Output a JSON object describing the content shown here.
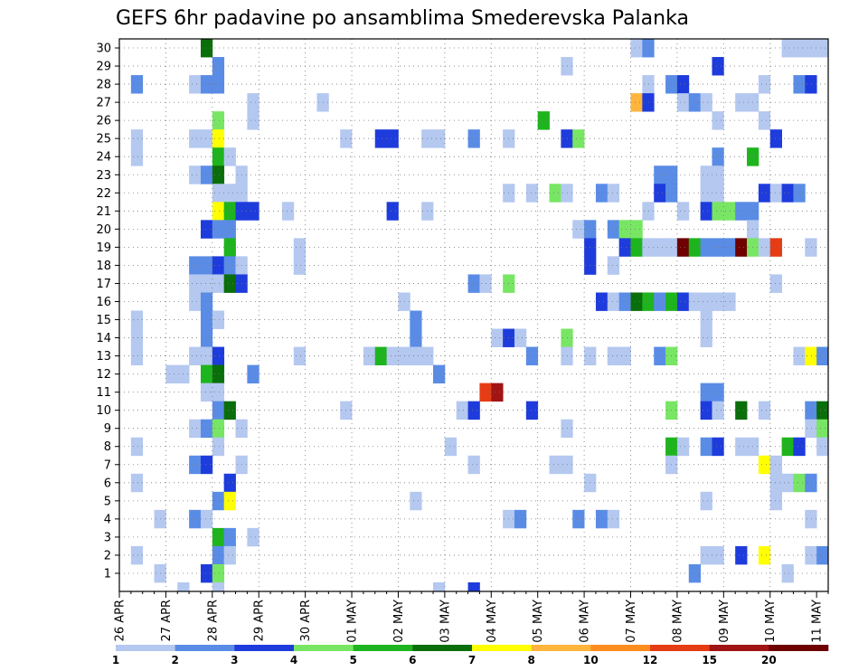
{
  "chart_data": {
    "type": "heatmap",
    "title": "GEFS 6hr padavine po ansamblima Smederevska Palanka",
    "x_labels": [
      "26 APR",
      "27 APR",
      "28 APR",
      "29 APR",
      "30 APR",
      "01 MAY",
      "02 MAY",
      "03 MAY",
      "04 MAY",
      "05 MAY",
      "06 MAY",
      "07 MAY",
      "08 MAY",
      "09 MAY",
      "10 MAY",
      "11 MAY"
    ],
    "y_labels": [
      "1",
      "2",
      "3",
      "4",
      "5",
      "6",
      "7",
      "8",
      "9",
      "10",
      "11",
      "12",
      "13",
      "14",
      "15",
      "16",
      "17",
      "18",
      "19",
      "20",
      "21",
      "22",
      "23",
      "24",
      "25",
      "26",
      "27",
      "28",
      "29",
      "30"
    ],
    "n_steps": 61,
    "xlim_steps": [
      0,
      61
    ],
    "ylim_members": [
      0.5,
      30.5
    ],
    "colorbar": {
      "labels": [
        "1",
        "2",
        "3",
        "4",
        "5",
        "6",
        "7",
        "8",
        "10",
        "12",
        "15",
        "20"
      ],
      "colors": [
        "#b4c8f0",
        "#5a8ce6",
        "#1e3cdc",
        "#78e664",
        "#1eb41e",
        "#0a6e0a",
        "#ffff00",
        "#ffb43c",
        "#ff8c1e",
        "#e63c14",
        "#a01414",
        "#6e0000"
      ]
    },
    "cells_note": "each cell = [member, step_index, color_index]",
    "cells": [
      [
        30,
        7,
        5
      ],
      [
        30,
        44,
        0
      ],
      [
        30,
        45,
        1
      ],
      [
        30,
        57,
        0
      ],
      [
        30,
        58,
        0
      ],
      [
        30,
        59,
        0
      ],
      [
        30,
        60,
        0
      ],
      [
        29,
        8,
        1
      ],
      [
        29,
        38,
        0
      ],
      [
        29,
        51,
        2
      ],
      [
        28,
        1,
        1
      ],
      [
        28,
        6,
        0
      ],
      [
        28,
        7,
        1
      ],
      [
        28,
        8,
        1
      ],
      [
        28,
        45,
        0
      ],
      [
        28,
        47,
        1
      ],
      [
        28,
        48,
        2
      ],
      [
        28,
        55,
        0
      ],
      [
        28,
        58,
        1
      ],
      [
        28,
        59,
        2
      ],
      [
        27,
        11,
        0
      ],
      [
        27,
        17,
        0
      ],
      [
        27,
        44,
        7
      ],
      [
        27,
        45,
        2
      ],
      [
        27,
        48,
        0
      ],
      [
        27,
        49,
        1
      ],
      [
        27,
        50,
        0
      ],
      [
        27,
        53,
        0
      ],
      [
        27,
        54,
        0
      ],
      [
        26,
        8,
        3
      ],
      [
        26,
        11,
        0
      ],
      [
        26,
        36,
        4
      ],
      [
        26,
        51,
        0
      ],
      [
        26,
        55,
        0
      ],
      [
        25,
        1,
        0
      ],
      [
        25,
        6,
        0
      ],
      [
        25,
        7,
        0
      ],
      [
        25,
        8,
        6
      ],
      [
        25,
        19,
        0
      ],
      [
        25,
        22,
        2
      ],
      [
        25,
        23,
        2
      ],
      [
        25,
        26,
        0
      ],
      [
        25,
        27,
        0
      ],
      [
        25,
        30,
        1
      ],
      [
        25,
        33,
        0
      ],
      [
        25,
        38,
        2
      ],
      [
        25,
        39,
        3
      ],
      [
        25,
        56,
        2
      ],
      [
        24,
        1,
        0
      ],
      [
        24,
        8,
        4
      ],
      [
        24,
        9,
        0
      ],
      [
        24,
        51,
        1
      ],
      [
        24,
        54,
        4
      ],
      [
        23,
        6,
        0
      ],
      [
        23,
        7,
        1
      ],
      [
        23,
        8,
        5
      ],
      [
        23,
        10,
        0
      ],
      [
        23,
        46,
        1
      ],
      [
        23,
        47,
        1
      ],
      [
        23,
        50,
        0
      ],
      [
        23,
        51,
        0
      ],
      [
        22,
        8,
        0
      ],
      [
        22,
        9,
        0
      ],
      [
        22,
        10,
        0
      ],
      [
        22,
        33,
        0
      ],
      [
        22,
        35,
        0
      ],
      [
        22,
        37,
        3
      ],
      [
        22,
        38,
        0
      ],
      [
        22,
        41,
        1
      ],
      [
        22,
        42,
        0
      ],
      [
        22,
        46,
        2
      ],
      [
        22,
        47,
        1
      ],
      [
        22,
        50,
        0
      ],
      [
        22,
        51,
        0
      ],
      [
        22,
        55,
        2
      ],
      [
        22,
        56,
        0
      ],
      [
        22,
        57,
        2
      ],
      [
        22,
        58,
        1
      ],
      [
        21,
        8,
        6
      ],
      [
        21,
        9,
        4
      ],
      [
        21,
        10,
        2
      ],
      [
        21,
        11,
        2
      ],
      [
        21,
        14,
        0
      ],
      [
        21,
        23,
        2
      ],
      [
        21,
        26,
        0
      ],
      [
        21,
        45,
        0
      ],
      [
        21,
        48,
        0
      ],
      [
        21,
        50,
        2
      ],
      [
        21,
        51,
        3
      ],
      [
        21,
        52,
        3
      ],
      [
        21,
        53,
        1
      ],
      [
        21,
        54,
        1
      ],
      [
        20,
        7,
        2
      ],
      [
        20,
        8,
        1
      ],
      [
        20,
        9,
        1
      ],
      [
        20,
        39,
        0
      ],
      [
        20,
        40,
        1
      ],
      [
        20,
        42,
        1
      ],
      [
        20,
        43,
        3
      ],
      [
        20,
        44,
        3
      ],
      [
        20,
        54,
        0
      ],
      [
        19,
        9,
        4
      ],
      [
        19,
        15,
        0
      ],
      [
        19,
        40,
        2
      ],
      [
        19,
        43,
        2
      ],
      [
        19,
        44,
        4
      ],
      [
        19,
        45,
        0
      ],
      [
        19,
        46,
        0
      ],
      [
        19,
        47,
        0
      ],
      [
        19,
        48,
        11
      ],
      [
        19,
        49,
        4
      ],
      [
        19,
        50,
        1
      ],
      [
        19,
        51,
        1
      ],
      [
        19,
        52,
        1
      ],
      [
        19,
        53,
        11
      ],
      [
        19,
        54,
        3
      ],
      [
        19,
        55,
        0
      ],
      [
        19,
        56,
        9
      ],
      [
        19,
        59,
        0
      ],
      [
        18,
        6,
        1
      ],
      [
        18,
        7,
        1
      ],
      [
        18,
        8,
        2
      ],
      [
        18,
        9,
        1
      ],
      [
        18,
        10,
        0
      ],
      [
        18,
        15,
        0
      ],
      [
        18,
        40,
        2
      ],
      [
        18,
        42,
        0
      ],
      [
        17,
        6,
        0
      ],
      [
        17,
        7,
        0
      ],
      [
        17,
        8,
        0
      ],
      [
        17,
        9,
        5
      ],
      [
        17,
        10,
        2
      ],
      [
        17,
        30,
        1
      ],
      [
        17,
        31,
        0
      ],
      [
        17,
        33,
        3
      ],
      [
        17,
        56,
        0
      ],
      [
        16,
        6,
        0
      ],
      [
        16,
        7,
        1
      ],
      [
        16,
        24,
        0
      ],
      [
        16,
        41,
        2
      ],
      [
        16,
        42,
        0
      ],
      [
        16,
        43,
        1
      ],
      [
        16,
        44,
        5
      ],
      [
        16,
        45,
        4
      ],
      [
        16,
        46,
        1
      ],
      [
        16,
        47,
        4
      ],
      [
        16,
        48,
        2
      ],
      [
        16,
        49,
        0
      ],
      [
        16,
        50,
        0
      ],
      [
        16,
        51,
        0
      ],
      [
        16,
        52,
        0
      ],
      [
        15,
        1,
        0
      ],
      [
        15,
        7,
        1
      ],
      [
        15,
        8,
        0
      ],
      [
        15,
        25,
        1
      ],
      [
        15,
        50,
        0
      ],
      [
        14,
        1,
        0
      ],
      [
        14,
        7,
        1
      ],
      [
        14,
        25,
        1
      ],
      [
        14,
        32,
        0
      ],
      [
        14,
        33,
        2
      ],
      [
        14,
        34,
        0
      ],
      [
        14,
        38,
        3
      ],
      [
        14,
        50,
        0
      ],
      [
        13,
        1,
        0
      ],
      [
        13,
        6,
        0
      ],
      [
        13,
        7,
        0
      ],
      [
        13,
        8,
        2
      ],
      [
        13,
        15,
        0
      ],
      [
        13,
        21,
        0
      ],
      [
        13,
        22,
        4
      ],
      [
        13,
        23,
        0
      ],
      [
        13,
        24,
        0
      ],
      [
        13,
        25,
        0
      ],
      [
        13,
        26,
        0
      ],
      [
        13,
        35,
        1
      ],
      [
        13,
        38,
        0
      ],
      [
        13,
        40,
        0
      ],
      [
        13,
        42,
        0
      ],
      [
        13,
        43,
        0
      ],
      [
        13,
        46,
        1
      ],
      [
        13,
        47,
        3
      ],
      [
        13,
        58,
        0
      ],
      [
        13,
        59,
        6
      ],
      [
        13,
        60,
        1
      ],
      [
        12,
        4,
        0
      ],
      [
        12,
        5,
        0
      ],
      [
        12,
        7,
        4
      ],
      [
        12,
        8,
        5
      ],
      [
        12,
        11,
        1
      ],
      [
        12,
        27,
        1
      ],
      [
        11,
        7,
        0
      ],
      [
        11,
        8,
        0
      ],
      [
        11,
        31,
        9
      ],
      [
        11,
        32,
        10
      ],
      [
        11,
        50,
        1
      ],
      [
        11,
        51,
        1
      ],
      [
        10,
        8,
        1
      ],
      [
        10,
        9,
        5
      ],
      [
        10,
        19,
        0
      ],
      [
        10,
        29,
        0
      ],
      [
        10,
        30,
        2
      ],
      [
        10,
        35,
        2
      ],
      [
        10,
        47,
        3
      ],
      [
        10,
        50,
        2
      ],
      [
        10,
        51,
        0
      ],
      [
        10,
        53,
        5
      ],
      [
        10,
        55,
        0
      ],
      [
        10,
        59,
        1
      ],
      [
        10,
        60,
        5
      ],
      [
        9,
        6,
        0
      ],
      [
        9,
        7,
        1
      ],
      [
        9,
        8,
        3
      ],
      [
        9,
        10,
        0
      ],
      [
        9,
        38,
        0
      ],
      [
        9,
        59,
        0
      ],
      [
        9,
        60,
        3
      ],
      [
        8,
        1,
        0
      ],
      [
        8,
        8,
        0
      ],
      [
        8,
        28,
        0
      ],
      [
        8,
        47,
        4
      ],
      [
        8,
        48,
        0
      ],
      [
        8,
        50,
        1
      ],
      [
        8,
        51,
        2
      ],
      [
        8,
        53,
        0
      ],
      [
        8,
        54,
        0
      ],
      [
        8,
        57,
        4
      ],
      [
        8,
        58,
        2
      ],
      [
        8,
        60,
        0
      ],
      [
        7,
        6,
        1
      ],
      [
        7,
        7,
        2
      ],
      [
        7,
        10,
        0
      ],
      [
        7,
        30,
        0
      ],
      [
        7,
        37,
        0
      ],
      [
        7,
        38,
        0
      ],
      [
        7,
        47,
        0
      ],
      [
        7,
        55,
        6
      ],
      [
        7,
        56,
        0
      ],
      [
        6,
        1,
        0
      ],
      [
        6,
        9,
        2
      ],
      [
        6,
        40,
        0
      ],
      [
        6,
        56,
        0
      ],
      [
        6,
        57,
        0
      ],
      [
        6,
        58,
        3
      ],
      [
        6,
        59,
        1
      ],
      [
        5,
        8,
        1
      ],
      [
        5,
        9,
        6
      ],
      [
        5,
        25,
        0
      ],
      [
        5,
        50,
        0
      ],
      [
        5,
        56,
        0
      ],
      [
        4,
        3,
        0
      ],
      [
        4,
        6,
        1
      ],
      [
        4,
        7,
        0
      ],
      [
        4,
        33,
        0
      ],
      [
        4,
        34,
        1
      ],
      [
        4,
        39,
        1
      ],
      [
        4,
        41,
        1
      ],
      [
        4,
        42,
        0
      ],
      [
        4,
        59,
        0
      ],
      [
        3,
        8,
        4
      ],
      [
        3,
        9,
        1
      ],
      [
        3,
        11,
        0
      ],
      [
        2,
        1,
        0
      ],
      [
        2,
        8,
        1
      ],
      [
        2,
        9,
        0
      ],
      [
        2,
        50,
        0
      ],
      [
        2,
        51,
        0
      ],
      [
        2,
        53,
        2
      ],
      [
        2,
        55,
        6
      ],
      [
        2,
        59,
        0
      ],
      [
        2,
        60,
        1
      ],
      [
        1,
        3,
        0
      ],
      [
        1,
        7,
        2
      ],
      [
        1,
        8,
        3
      ],
      [
        1,
        49,
        1
      ],
      [
        1,
        57,
        0
      ],
      [
        0,
        5,
        0
      ],
      [
        0,
        8,
        0
      ],
      [
        0,
        27,
        0
      ],
      [
        0,
        30,
        2
      ]
    ]
  }
}
